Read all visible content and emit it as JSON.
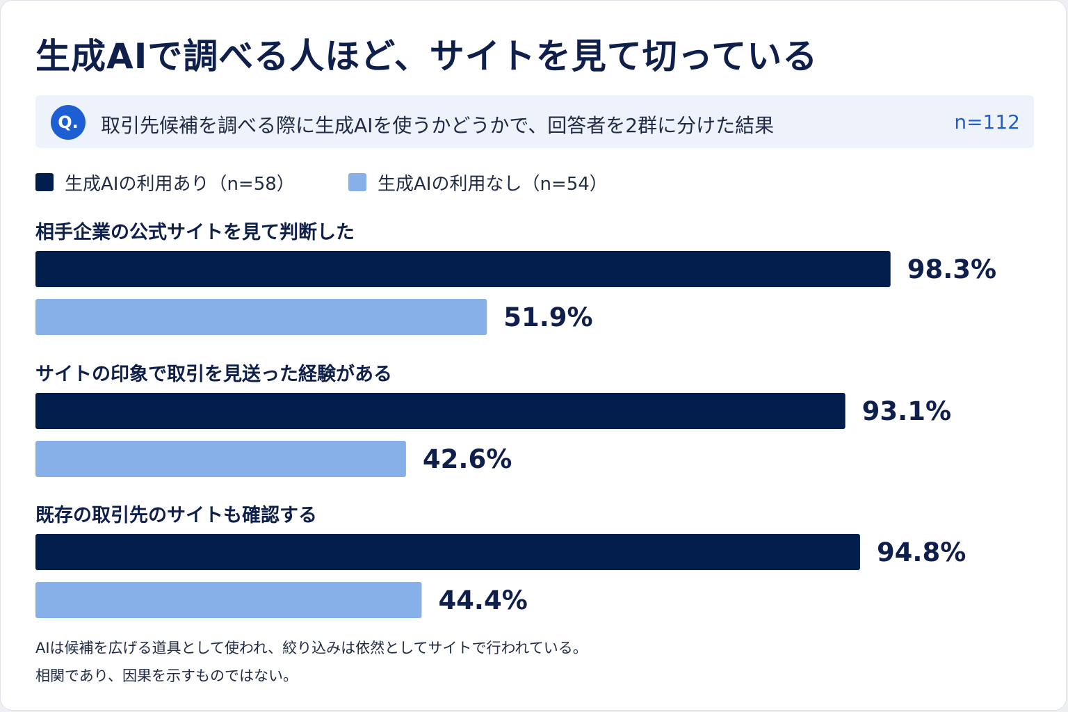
{
  "title": "生成AIで調べる人ほど、サイトを見て切っている",
  "question": {
    "icon": "Q.",
    "text": "取引先候補を調べる際に生成AIを使うかどうかで、回答者を2群に分けた結果",
    "n": "n=112"
  },
  "colors": {
    "dark_navy": "#021e4d",
    "light_blue": "#87b0e8",
    "accent_blue": "#1d5fd3",
    "text_dark": "#0f1f4b"
  },
  "chart_data": {
    "type": "bar",
    "orientation": "horizontal",
    "unit": "%",
    "xlim": [
      0,
      100
    ],
    "grid": false,
    "legend_position": "top-left",
    "categories": [
      "相手企業の公式サイトを見て判断した",
      "サイトの印象で取引を見送った経験がある",
      "既存の取引先のサイトも確認する"
    ],
    "series": [
      {
        "name": "生成AIの利用あり（n=58）",
        "color": "#021e4d",
        "values": [
          98.3,
          93.1,
          94.8
        ],
        "labels": [
          "98.3%",
          "93.1%",
          "94.8%"
        ]
      },
      {
        "name": "生成AIの利用なし（n=54）",
        "color": "#87b0e8",
        "values": [
          51.9,
          42.6,
          44.4
        ],
        "labels": [
          "51.9%",
          "42.6%",
          "44.4%"
        ]
      }
    ]
  },
  "footnotes": [
    "AIは候補を広げる道具として使われ、絞り込みは依然としてサイトで行われている。",
    "相関であり、因果を示すものではない。"
  ]
}
